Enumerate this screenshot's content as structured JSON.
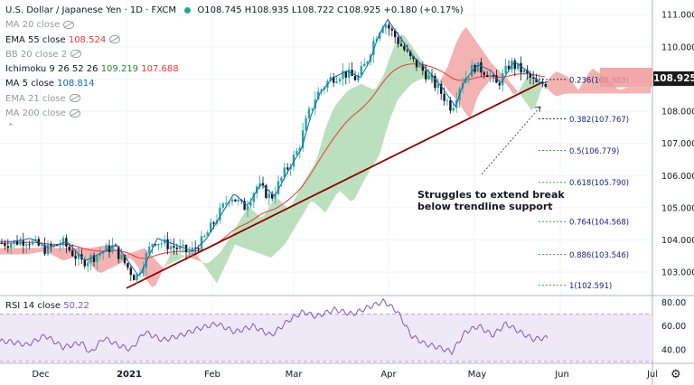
{
  "header": {
    "symbol_title": "U.S. Dollar / Japanese Yen · 1D · FXCM",
    "ohlc": "O108.745 H108.935 L108.722 C108.925 +0.180 (+0.17%)"
  },
  "indicators": [
    {
      "label": "MA 20 close",
      "value": "",
      "hidden": true
    },
    {
      "label": "EMA 55 close",
      "value": "108.524",
      "color": "#e53935",
      "hidden": true
    },
    {
      "label": "BB 20 close 2",
      "value": "",
      "hidden": true
    },
    {
      "label": "Ichimoku 9 26 52 26",
      "value": "109.219",
      "value2": "107.688",
      "color": "#2e7d32",
      "color2": "#e53935",
      "hidden": false
    },
    {
      "label": "MA 5 close",
      "value": "108.814",
      "color": "#1565c0",
      "hidden": false
    },
    {
      "label": "EMA 21 close",
      "value": "",
      "hidden": true
    },
    {
      "label": "MA 200 close",
      "value": "",
      "hidden": true
    }
  ],
  "current_price": "108.925",
  "rsi": {
    "label": "RSI 14 close",
    "value": "50.22",
    "color": "#7e57c2"
  },
  "annotation": {
    "line1": "Struggles to extend break",
    "line2": "below trendline support"
  },
  "chart_data": [
    {
      "type": "candlestick",
      "title": "U.S. Dollar / Japanese Yen · 1D · FXCM",
      "x_ticks": [
        "Dec",
        "2021",
        "Feb",
        "Mar",
        "Apr",
        "May",
        "Jun",
        "Jul"
      ],
      "ylim": [
        102.3,
        111.4
      ],
      "y_ticks": [
        103.0,
        104.0,
        105.0,
        106.0,
        107.0,
        108.0,
        109.0,
        110.0,
        111.0
      ],
      "fibonacci": [
        {
          "label": "0.236(108.989)",
          "value": 108.989
        },
        {
          "label": "0.382(107.767)",
          "value": 107.767
        },
        {
          "label": "0.5(106.779)",
          "value": 106.779
        },
        {
          "label": "0.618(105.790)",
          "value": 105.79
        },
        {
          "label": "0.764(104.568)",
          "value": 104.568
        },
        {
          "label": "0.886(103.546)",
          "value": 103.546
        },
        {
          "label": "1(102.591)",
          "value": 102.591
        }
      ],
      "trendline": [
        {
          "x": 140,
          "y": 102.5
        },
        {
          "x": 600,
          "y": 108.9
        }
      ],
      "key_points": [
        {
          "x": 10,
          "y": 103.9
        },
        {
          "x": 30,
          "y": 104.0
        },
        {
          "x": 50,
          "y": 103.7
        },
        {
          "x": 70,
          "y": 103.9
        },
        {
          "x": 90,
          "y": 103.3
        },
        {
          "x": 105,
          "y": 103.5
        },
        {
          "x": 125,
          "y": 103.8
        },
        {
          "x": 140,
          "y": 103.2
        },
        {
          "x": 150,
          "y": 102.8
        },
        {
          "x": 160,
          "y": 103.4
        },
        {
          "x": 170,
          "y": 104.0
        },
        {
          "x": 190,
          "y": 103.8
        },
        {
          "x": 210,
          "y": 103.6
        },
        {
          "x": 225,
          "y": 104.0
        },
        {
          "x": 240,
          "y": 104.7
        },
        {
          "x": 255,
          "y": 105.4
        },
        {
          "x": 270,
          "y": 105.0
        },
        {
          "x": 285,
          "y": 105.7
        },
        {
          "x": 300,
          "y": 105.3
        },
        {
          "x": 315,
          "y": 106.1
        },
        {
          "x": 330,
          "y": 106.8
        },
        {
          "x": 340,
          "y": 107.8
        },
        {
          "x": 350,
          "y": 108.5
        },
        {
          "x": 365,
          "y": 109.0
        },
        {
          "x": 380,
          "y": 109.2
        },
        {
          "x": 395,
          "y": 109.0
        },
        {
          "x": 405,
          "y": 109.5
        },
        {
          "x": 415,
          "y": 110.3
        },
        {
          "x": 425,
          "y": 110.8
        },
        {
          "x": 440,
          "y": 110.2
        },
        {
          "x": 455,
          "y": 109.6
        },
        {
          "x": 470,
          "y": 109.2
        },
        {
          "x": 485,
          "y": 108.7
        },
        {
          "x": 500,
          "y": 108.1
        },
        {
          "x": 510,
          "y": 108.9
        },
        {
          "x": 525,
          "y": 109.4
        },
        {
          "x": 540,
          "y": 109.2
        },
        {
          "x": 550,
          "y": 108.8
        },
        {
          "x": 565,
          "y": 109.5
        },
        {
          "x": 580,
          "y": 109.2
        },
        {
          "x": 595,
          "y": 108.8
        },
        {
          "x": 605,
          "y": 108.9
        }
      ]
    },
    {
      "type": "line",
      "title": "RSI 14 close",
      "ylim": [
        30,
        85
      ],
      "y_ticks": [
        40.0,
        60.0,
        80.0
      ],
      "key_points": [
        {
          "x": 10,
          "y": 47
        },
        {
          "x": 30,
          "y": 44
        },
        {
          "x": 50,
          "y": 52
        },
        {
          "x": 70,
          "y": 42
        },
        {
          "x": 90,
          "y": 46
        },
        {
          "x": 100,
          "y": 37
        },
        {
          "x": 115,
          "y": 50
        },
        {
          "x": 130,
          "y": 44
        },
        {
          "x": 145,
          "y": 40
        },
        {
          "x": 160,
          "y": 55
        },
        {
          "x": 180,
          "y": 48
        },
        {
          "x": 200,
          "y": 52
        },
        {
          "x": 220,
          "y": 58
        },
        {
          "x": 240,
          "y": 62
        },
        {
          "x": 260,
          "y": 55
        },
        {
          "x": 280,
          "y": 60
        },
        {
          "x": 300,
          "y": 52
        },
        {
          "x": 320,
          "y": 65
        },
        {
          "x": 335,
          "y": 72
        },
        {
          "x": 350,
          "y": 68
        },
        {
          "x": 370,
          "y": 74
        },
        {
          "x": 390,
          "y": 70
        },
        {
          "x": 405,
          "y": 75
        },
        {
          "x": 425,
          "y": 81
        },
        {
          "x": 440,
          "y": 72
        },
        {
          "x": 455,
          "y": 52
        },
        {
          "x": 470,
          "y": 45
        },
        {
          "x": 485,
          "y": 42
        },
        {
          "x": 500,
          "y": 38
        },
        {
          "x": 515,
          "y": 55
        },
        {
          "x": 530,
          "y": 60
        },
        {
          "x": 545,
          "y": 52
        },
        {
          "x": 560,
          "y": 62
        },
        {
          "x": 575,
          "y": 55
        },
        {
          "x": 590,
          "y": 49
        },
        {
          "x": 605,
          "y": 50
        }
      ]
    }
  ]
}
